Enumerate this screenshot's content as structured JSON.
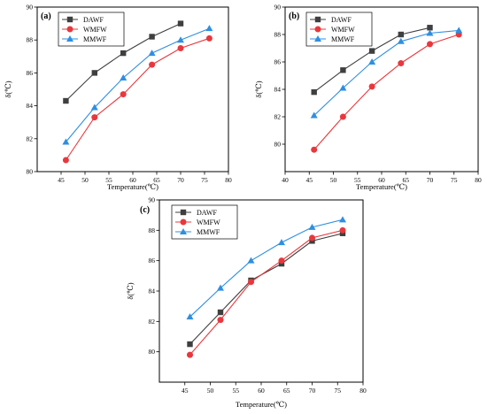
{
  "chart_data": [
    {
      "type": "line",
      "panel_label": "(a)",
      "xlabel": "Temperature(℃)",
      "ylabel": "δ(℃)",
      "xlim": [
        40,
        80
      ],
      "ylim": [
        80,
        90
      ],
      "xticks": [
        45,
        50,
        55,
        60,
        65,
        70,
        75,
        80
      ],
      "yticks": [
        80,
        82,
        84,
        86,
        88,
        90
      ],
      "legend_position": "top-left",
      "grid": false,
      "series": [
        {
          "name": "DAWF",
          "color": "#3f3f3f",
          "marker": "square",
          "x": [
            46,
            52,
            58,
            64,
            70
          ],
          "y": [
            84.3,
            86.0,
            87.2,
            88.2,
            89.0
          ]
        },
        {
          "name": "WMFW",
          "color": "#e8383d",
          "marker": "circle",
          "x": [
            46,
            52,
            58,
            64,
            70,
            76
          ],
          "y": [
            80.7,
            83.3,
            84.7,
            86.5,
            87.5,
            88.1
          ]
        },
        {
          "name": "MMWF",
          "color": "#2e8fe0",
          "marker": "triangle",
          "x": [
            46,
            52,
            58,
            64,
            70,
            76
          ],
          "y": [
            81.8,
            83.9,
            85.7,
            87.2,
            88.0,
            88.7
          ]
        }
      ]
    },
    {
      "type": "line",
      "panel_label": "(b)",
      "xlabel": "Temperature(℃)",
      "ylabel": "δ(℃)",
      "xlim": [
        40,
        80
      ],
      "ylim": [
        78,
        90
      ],
      "xticks": [
        40,
        45,
        50,
        55,
        60,
        65,
        70,
        75,
        80
      ],
      "yticks": [
        80,
        82,
        84,
        86,
        88,
        90
      ],
      "legend_position": "top-left",
      "grid": false,
      "series": [
        {
          "name": "DAWF",
          "color": "#3f3f3f",
          "marker": "square",
          "x": [
            46,
            52,
            58,
            64,
            70
          ],
          "y": [
            83.8,
            85.4,
            86.8,
            88.0,
            88.5
          ]
        },
        {
          "name": "WMFW",
          "color": "#e8383d",
          "marker": "circle",
          "x": [
            46,
            52,
            58,
            64,
            70,
            76
          ],
          "y": [
            79.6,
            82.0,
            84.2,
            85.9,
            87.3,
            88.0
          ]
        },
        {
          "name": "MMWF",
          "color": "#2e8fe0",
          "marker": "triangle",
          "x": [
            46,
            52,
            58,
            64,
            70,
            76
          ],
          "y": [
            82.1,
            84.1,
            86.0,
            87.5,
            88.1,
            88.3
          ]
        }
      ]
    },
    {
      "type": "line",
      "panel_label": "(c)",
      "xlabel": "Temperature(℃)",
      "ylabel": "δ(℃)",
      "xlim": [
        40,
        80
      ],
      "ylim": [
        78,
        90
      ],
      "xticks": [
        45,
        50,
        55,
        60,
        65,
        70,
        75,
        80
      ],
      "yticks": [
        80,
        82,
        84,
        86,
        88,
        90
      ],
      "legend_position": "top-left",
      "grid": false,
      "series": [
        {
          "name": "DAWF",
          "color": "#3f3f3f",
          "marker": "square",
          "x": [
            46,
            52,
            58,
            64,
            70,
            76
          ],
          "y": [
            80.5,
            82.6,
            84.7,
            85.8,
            87.3,
            87.8
          ]
        },
        {
          "name": "WMFW",
          "color": "#e8383d",
          "marker": "circle",
          "x": [
            46,
            52,
            58,
            64,
            70,
            76
          ],
          "y": [
            79.8,
            82.1,
            84.6,
            86.0,
            87.5,
            88.0
          ]
        },
        {
          "name": "MMWF",
          "color": "#2e8fe0",
          "marker": "triangle",
          "x": [
            46,
            52,
            58,
            64,
            70,
            76
          ],
          "y": [
            82.3,
            84.2,
            86.0,
            87.2,
            88.2,
            88.7
          ]
        }
      ]
    }
  ]
}
